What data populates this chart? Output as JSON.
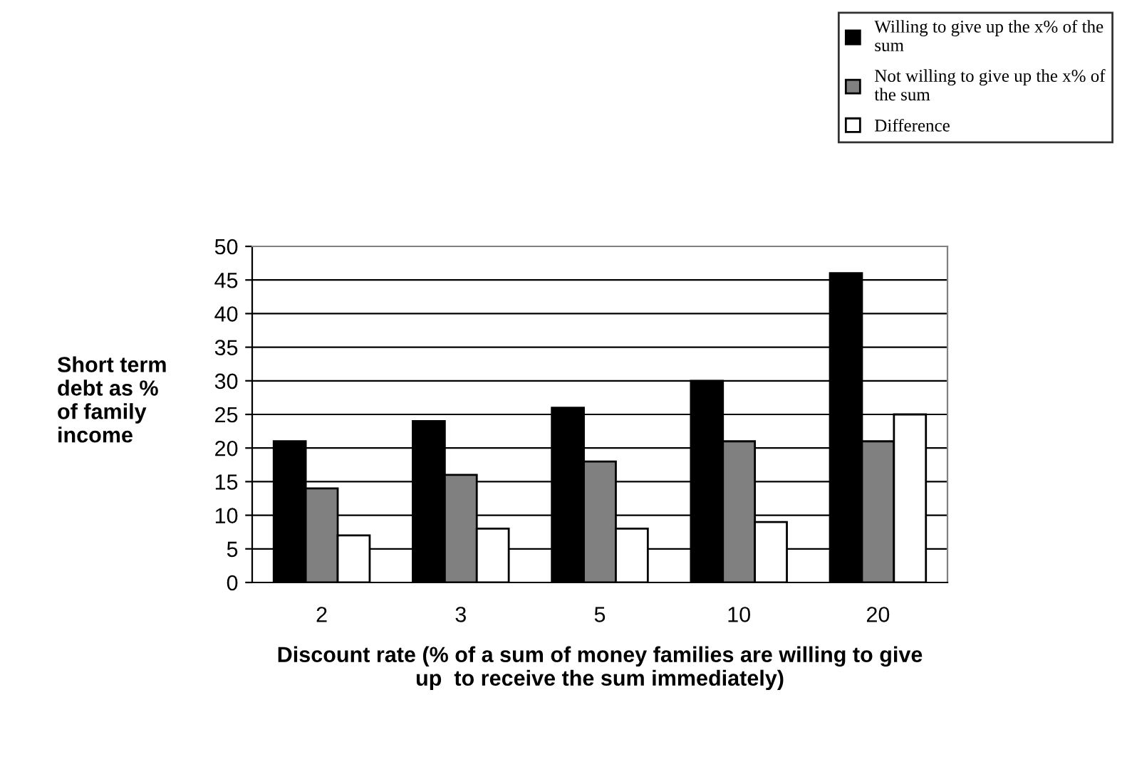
{
  "chart_data": {
    "type": "bar",
    "xlabel": "Discount rate (% of a sum of money families are willing to give\nup  to receive the sum immediately)",
    "ylabel": "Short term\ndebt as %\nof family\nincome",
    "categories": [
      "2",
      "3",
      "5",
      "10",
      "20"
    ],
    "series": [
      {
        "name": "Willing to give up the x% of the\nsum",
        "color": "#000000",
        "values": [
          21,
          24,
          26,
          30,
          46
        ]
      },
      {
        "name": "Not willing to give up the x% of\nthe sum",
        "color": "#808080",
        "values": [
          14,
          16,
          18,
          21,
          21
        ]
      },
      {
        "name": "Difference",
        "color": "#ffffff",
        "values": [
          7,
          8,
          8,
          9,
          25
        ]
      }
    ],
    "ylim": [
      0,
      50
    ],
    "yticks": [
      0,
      5,
      10,
      15,
      20,
      25,
      30,
      35,
      40,
      45,
      50
    ],
    "grid": "y",
    "legend": "top right"
  }
}
